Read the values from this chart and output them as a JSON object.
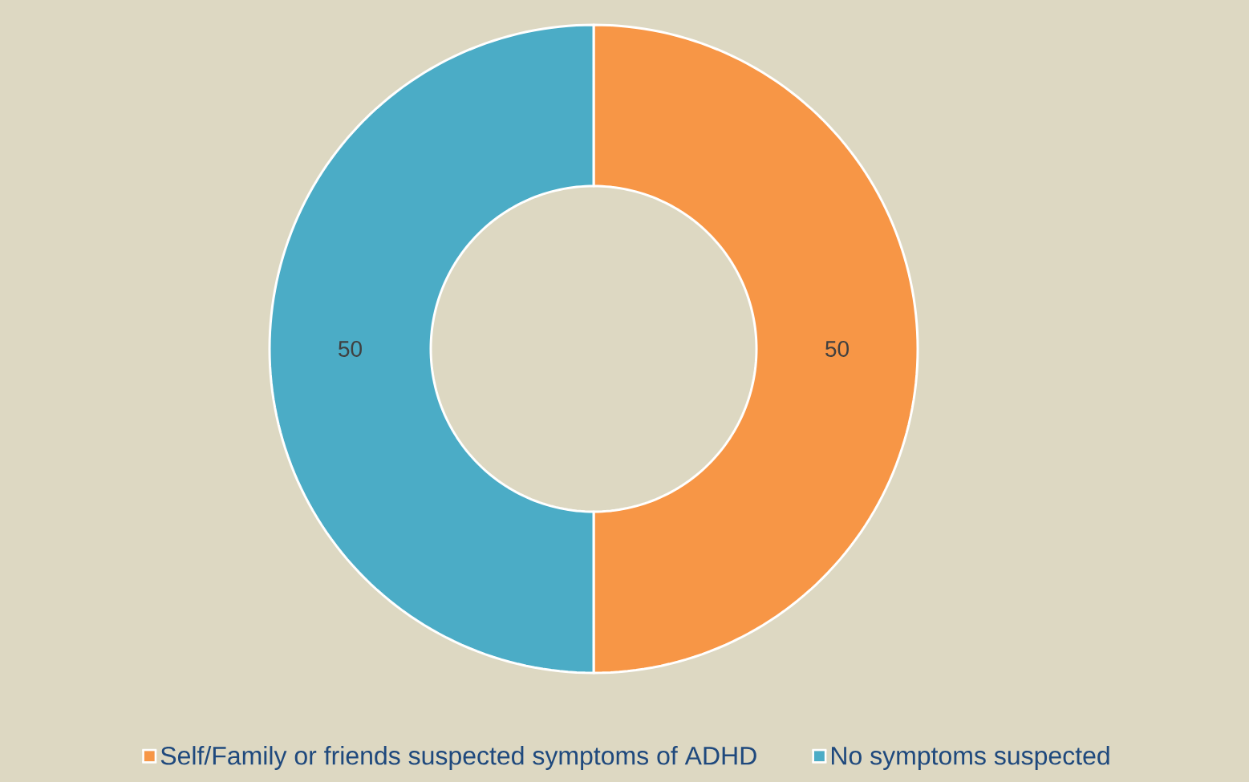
{
  "chart_data": {
    "type": "donut",
    "categories": [
      "Self/Family or friends suspected symptoms of ADHD",
      "No symptoms suspected"
    ],
    "values": [
      50,
      50
    ],
    "colors": [
      "#f79646",
      "#4bacc6"
    ],
    "data_labels": true,
    "legend": "bottom"
  }
}
